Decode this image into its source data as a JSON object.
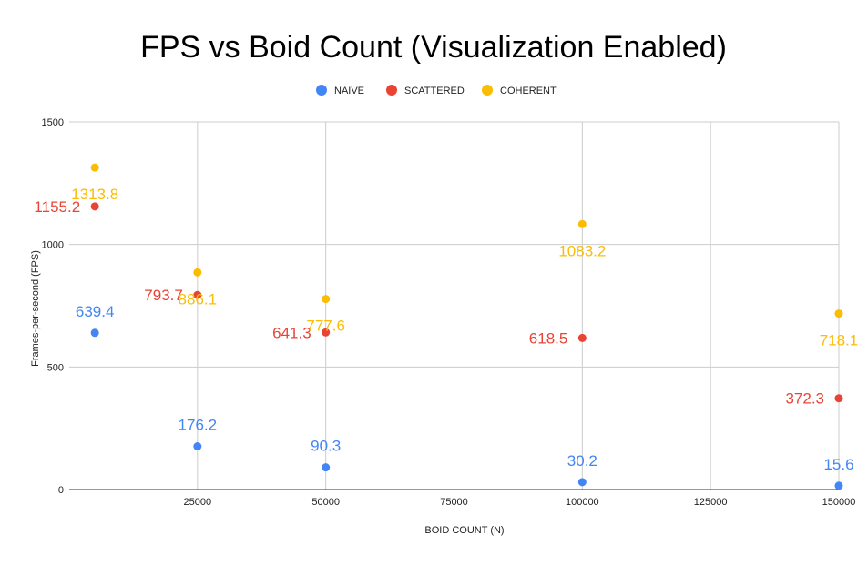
{
  "chart_data": {
    "type": "scatter",
    "title": "FPS vs Boid Count (Visualization Enabled)",
    "xlabel": "BOID COUNT (N)",
    "ylabel": "Frames-per-second (FPS)",
    "xlim": [
      0,
      150000
    ],
    "ylim": [
      0,
      1500
    ],
    "x_ticks": [
      25000,
      50000,
      75000,
      100000,
      125000,
      150000
    ],
    "y_ticks": [
      0,
      500,
      1000,
      1500
    ],
    "grid": true,
    "legend_position": "top",
    "series": [
      {
        "name": "NAIVE",
        "color": "#4285f4",
        "points": [
          {
            "x": 5000,
            "y": 639.4,
            "label": "639.4"
          },
          {
            "x": 25000,
            "y": 176.2,
            "label": "176.2"
          },
          {
            "x": 50000,
            "y": 90.3,
            "label": "90.3"
          },
          {
            "x": 100000,
            "y": 30.2,
            "label": "30.2"
          },
          {
            "x": 150000,
            "y": 15.6,
            "label": "15.6"
          }
        ]
      },
      {
        "name": "SCATTERED",
        "color": "#ea4335",
        "points": [
          {
            "x": 5000,
            "y": 1155.2,
            "label": "1155.2"
          },
          {
            "x": 25000,
            "y": 793.7,
            "label": "793.7"
          },
          {
            "x": 50000,
            "y": 641.3,
            "label": "641.3"
          },
          {
            "x": 100000,
            "y": 618.5,
            "label": "618.5"
          },
          {
            "x": 150000,
            "y": 372.3,
            "label": "372.3"
          }
        ]
      },
      {
        "name": "COHERENT",
        "color": "#fbbc04",
        "points": [
          {
            "x": 5000,
            "y": 1313.8,
            "label": "1313.8"
          },
          {
            "x": 25000,
            "y": 886.1,
            "label": "886.1"
          },
          {
            "x": 50000,
            "y": 777.6,
            "label": "777.6"
          },
          {
            "x": 100000,
            "y": 1083.2,
            "label": "1083.2"
          },
          {
            "x": 150000,
            "y": 718.1,
            "label": "718.1"
          }
        ]
      }
    ]
  }
}
